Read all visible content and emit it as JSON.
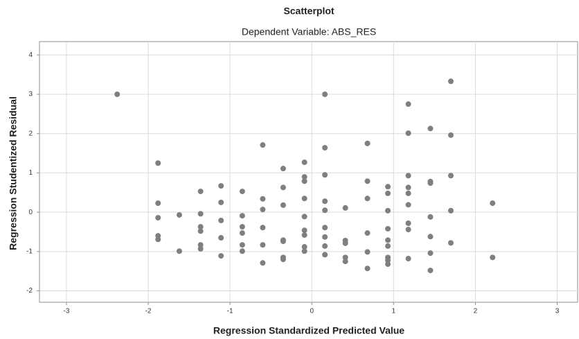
{
  "chart_data": {
    "type": "scatter",
    "title": "Scatterplot",
    "subtitle": "Dependent Variable: ABS_RES",
    "x_label": "Regression Standardized Predicted Value",
    "y_label": "Regression Studentized Residual",
    "color": "#7f7f7f",
    "grid": true,
    "xlim": [
      -3.33,
      3.25
    ],
    "ylim": [
      -2.29,
      4.34
    ],
    "xticks": [
      -3,
      -2,
      -1,
      0,
      1,
      2,
      3
    ],
    "yticks": [
      -2,
      -1,
      0,
      1,
      2,
      3,
      4
    ],
    "x": [
      -2.38,
      -1.88,
      -1.88,
      -1.88,
      -1.88,
      -1.88,
      -1.62,
      -1.62,
      -1.36,
      -1.36,
      -1.36,
      -1.36,
      -1.36,
      -1.36,
      -1.11,
      -1.11,
      -1.11,
      -1.11,
      -1.11,
      -0.85,
      -0.85,
      -0.85,
      -0.85,
      -0.85,
      -0.85,
      -0.6,
      -0.6,
      -0.6,
      -0.6,
      -0.6,
      -0.6,
      -0.35,
      -0.35,
      -0.35,
      -0.35,
      -0.35,
      -0.35,
      -0.35,
      -0.09,
      -0.09,
      -0.09,
      -0.09,
      -0.09,
      -0.09,
      -0.09,
      -0.09,
      -0.09,
      0.16,
      0.16,
      0.16,
      0.16,
      0.16,
      0.16,
      0.16,
      0.16,
      0.16,
      0.41,
      0.41,
      0.41,
      0.41,
      0.41,
      0.68,
      0.68,
      0.68,
      0.68,
      0.68,
      0.68,
      0.93,
      0.93,
      0.93,
      0.93,
      0.93,
      0.93,
      0.93,
      0.93,
      0.93,
      1.18,
      1.18,
      1.18,
      1.18,
      1.18,
      1.18,
      1.18,
      1.18,
      1.18,
      1.45,
      1.45,
      1.45,
      1.45,
      1.45,
      1.45,
      1.45,
      1.7,
      1.7,
      1.7,
      1.7,
      1.7,
      2.21,
      2.21
    ],
    "values": [
      3.0,
      1.25,
      0.23,
      -0.14,
      -0.6,
      -0.69,
      -0.07,
      -0.99,
      0.53,
      -0.04,
      -0.37,
      -0.48,
      -0.83,
      -0.93,
      0.67,
      0.25,
      -0.21,
      -0.65,
      -1.11,
      0.53,
      -0.09,
      -0.37,
      -0.53,
      -0.83,
      -0.99,
      1.71,
      0.34,
      0.07,
      -0.39,
      -0.83,
      -1.29,
      1.11,
      0.63,
      0.18,
      -0.71,
      -0.74,
      -1.15,
      -1.2,
      1.27,
      0.9,
      0.79,
      0.35,
      -0.11,
      -0.46,
      -0.58,
      -0.88,
      -0.99,
      3.0,
      1.64,
      0.95,
      0.28,
      0.05,
      -0.39,
      -0.63,
      -0.86,
      -1.08,
      0.11,
      -0.72,
      -0.79,
      -1.15,
      -1.25,
      1.75,
      0.79,
      0.35,
      -0.53,
      -1.01,
      -1.43,
      0.65,
      0.48,
      0.04,
      -0.42,
      -0.71,
      -0.86,
      -1.15,
      -1.22,
      -1.32,
      2.75,
      2.01,
      0.93,
      0.63,
      0.48,
      0.19,
      -0.28,
      -0.44,
      -1.18,
      2.13,
      0.78,
      0.74,
      -0.12,
      -0.62,
      -1.04,
      -1.48,
      3.33,
      1.96,
      0.93,
      0.04,
      -0.78,
      0.23,
      -1.15
    ]
  }
}
